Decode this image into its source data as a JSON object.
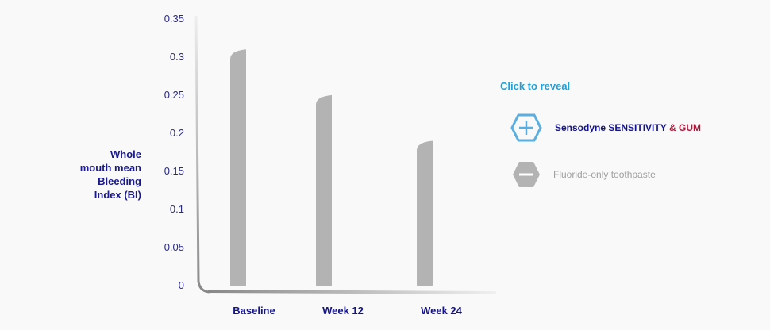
{
  "chart_data": {
    "type": "bar",
    "categories": [
      "Baseline",
      "Week 12",
      "Week 24"
    ],
    "series": [
      {
        "values": [
          0.31,
          0.25,
          0.19
        ],
        "color": "#b3b3b3"
      }
    ],
    "ylabel": "Whole\nmouth mean\nBleeding\nIndex (BI)",
    "xlabel": "",
    "ylim": [
      0,
      0.35
    ],
    "yticks": [
      "0",
      "0.05",
      "0.1",
      "0.15",
      "0.2",
      "0.25",
      "0.3",
      "0.35"
    ],
    "grid": false,
    "legend_placement": "right"
  },
  "reveal_label": "Click to reveal",
  "legend": {
    "item1": {
      "brand": "Sensodyne SENSITIVITY",
      "suffix": "& GUM",
      "icon": "plus-hexagon-icon",
      "color": "#5aaee0"
    },
    "item2": {
      "label": "Fluoride-only toothpaste",
      "icon": "minus-hexagon-icon",
      "color": "#b3b3b3"
    }
  },
  "colors": {
    "axis_text": "#1a1a8c",
    "accent": "#22a0d8",
    "red": "#b0163a"
  }
}
